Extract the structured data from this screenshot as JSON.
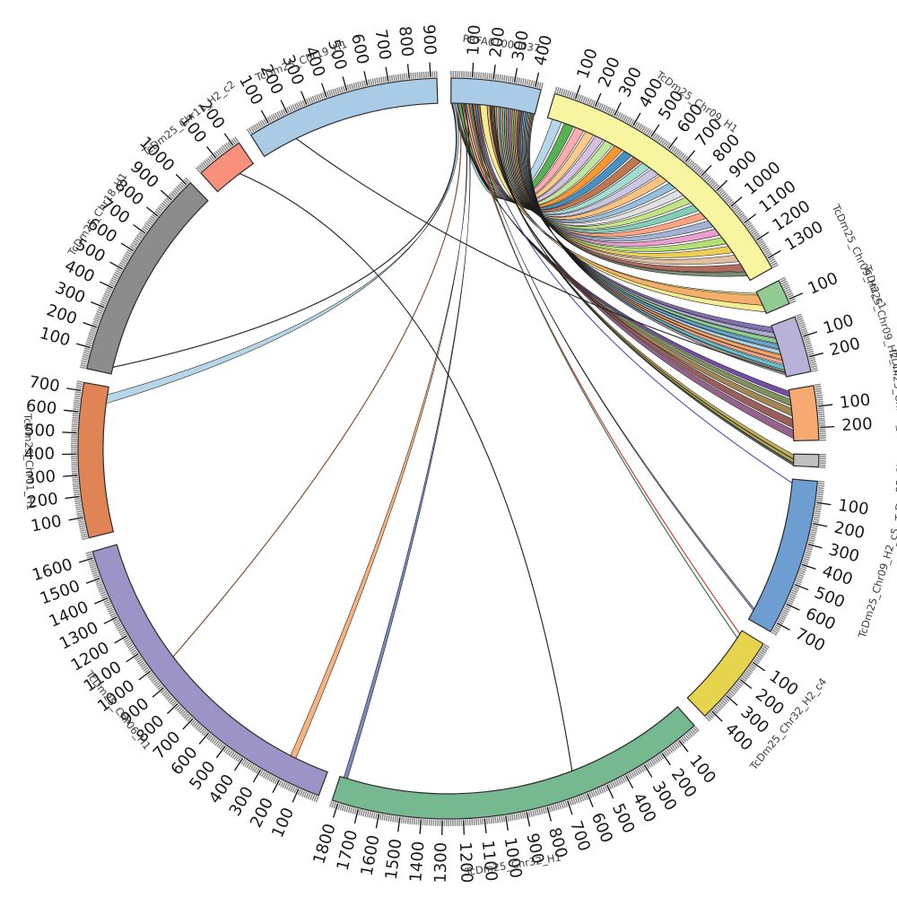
{
  "figure": {
    "kind": "circular synteny (circos-style) plot",
    "tick_unit_interval": 100,
    "minor_tick_interval": 10
  },
  "chart_data": {
    "type": "circos-synteny",
    "title": "",
    "segments": [
      {
        "id": "PRFA",
        "label": "PRFA01000037",
        "length": 430,
        "color": "#a9cbe5",
        "label_at": 215,
        "label_r": 455
      },
      {
        "id": "C09H1",
        "label": "TcDm25_Chr09_H1",
        "length": 1350,
        "color": "#f8f5a0",
        "label_at": 580,
        "label_r": 475
      },
      {
        "id": "C09c1",
        "label": "TcDm25_Chr09_H2_c1",
        "length": 120,
        "color": "#92cb92",
        "label_at": 60,
        "label_r": 505
      },
      {
        "id": "C09c2",
        "label": "TcDm25_Chr09_H2_c2",
        "length": 270,
        "color": "#bab1d8",
        "label_at": 135,
        "label_r": 505
      },
      {
        "id": "C09c3",
        "label": "TcDm25_Chr09_H2_c3",
        "length": 260,
        "color": "#f7a972",
        "label_at": 130,
        "label_r": 505
      },
      {
        "id": "C09c4",
        "label": "TcDm25_Chr09_H2_c4",
        "length": 60,
        "color": "#c0c0c0",
        "label_at": 30,
        "label_r": 505
      },
      {
        "id": "C09c5",
        "label": "TcDm25_Chr09_H2_c5",
        "length": 750,
        "color": "#6d9dd1",
        "label_at": 375,
        "label_r": 503
      },
      {
        "id": "C32c4",
        "label": "TcDm25_Chr32_H2_c4",
        "length": 440,
        "color": "#e6d44f",
        "label_at": 220,
        "label_r": 488
      },
      {
        "id": "C32H1",
        "label": "TcDm25_Chr32_H1",
        "length": 1830,
        "color": "#76b890",
        "label_at": 1000,
        "label_r": 470
      },
      {
        "id": "C06H1",
        "label": "TcDm25_Chr06_H1",
        "length": 1630,
        "color": "#9d93c6",
        "label_at": 950,
        "label_r": 470
      },
      {
        "id": "C01H1",
        "label": "TcDm25_Chr01_H1",
        "length": 740,
        "color": "#e08455",
        "label_at": 370,
        "label_r": 468
      },
      {
        "id": "C18H1",
        "label": "TcDm25_Chr18_H1",
        "length": 1020,
        "color": "#8c8c8c",
        "label_at": 650,
        "label_r": 470
      },
      {
        "id": "C11c2",
        "label": "TcDm25_Chr11_H2_c2",
        "length": 230,
        "color": "#f9907c",
        "label_at": 115,
        "label_r": 468
      },
      {
        "id": "C19H1",
        "label": "TcDm25_Chr19_H1",
        "length": 930,
        "color": "#a9cbe5",
        "label_at": 350,
        "label_r": 462
      }
    ],
    "links": [
      {
        "s": [
          18,
          34
        ],
        "target": "C09H1",
        "t": [
          25,
          75
        ],
        "color": "#a6cee3",
        "style": "ribbon"
      },
      {
        "s": [
          36,
          50
        ],
        "target": "C09H1",
        "t": [
          90,
          140
        ],
        "color": "#33a02c",
        "style": "ribbon"
      },
      {
        "s": [
          52,
          64
        ],
        "target": "C09H1",
        "t": [
          150,
          195
        ],
        "color": "#fb9a99",
        "style": "ribbon"
      },
      {
        "s": [
          66,
          78
        ],
        "target": "C09H1",
        "t": [
          205,
          250
        ],
        "color": "#fdbf6f",
        "style": "ribbon"
      },
      {
        "s": [
          80,
          92
        ],
        "target": "C09H1",
        "t": [
          260,
          305
        ],
        "color": "#cab2d6",
        "style": "ribbon"
      },
      {
        "s": [
          94,
          106
        ],
        "target": "C09H1",
        "t": [
          315,
          360
        ],
        "color": "#b2df8a",
        "style": "ribbon"
      },
      {
        "s": [
          108,
          120
        ],
        "target": "C09H1",
        "t": [
          370,
          415
        ],
        "color": "#ff7f00",
        "style": "ribbon"
      },
      {
        "s": [
          122,
          134
        ],
        "target": "C09H1",
        "t": [
          425,
          470
        ],
        "color": "#1f78b4",
        "style": "ribbon"
      },
      {
        "s": [
          136,
          146
        ],
        "target": "C09H1",
        "t": [
          480,
          525
        ],
        "color": "#b15928",
        "style": "ribbon"
      },
      {
        "s": [
          210,
          220
        ],
        "target": "C09H1",
        "t": [
          535,
          580
        ],
        "color": "#8dd3c7",
        "style": "ribbon"
      },
      {
        "s": [
          222,
          232
        ],
        "target": "C09H1",
        "t": [
          590,
          635
        ],
        "color": "#bebada",
        "style": "ribbon"
      },
      {
        "s": [
          234,
          244
        ],
        "target": "C09H1",
        "t": [
          645,
          690
        ],
        "color": "#fdb462",
        "style": "ribbon"
      },
      {
        "s": [
          246,
          254
        ],
        "target": "C09H1",
        "t": [
          705,
          745
        ],
        "color": "#80b1d3",
        "style": "ribbon"
      },
      {
        "s": [
          256,
          264
        ],
        "target": "C09H1",
        "t": [
          760,
          800
        ],
        "color": "#d9d9d9",
        "style": "ribbon"
      },
      {
        "s": [
          266,
          274
        ],
        "target": "C09H1",
        "t": [
          815,
          855
        ],
        "color": "#b3de69",
        "style": "ribbon"
      },
      {
        "s": [
          276,
          284
        ],
        "target": "C09H1",
        "t": [
          870,
          910
        ],
        "color": "#66c2a5",
        "style": "ribbon"
      },
      {
        "s": [
          286,
          294
        ],
        "target": "C09H1",
        "t": [
          925,
          965
        ],
        "color": "#fc8d62",
        "style": "ribbon"
      },
      {
        "s": [
          296,
          304
        ],
        "target": "C09H1",
        "t": [
          980,
          1020
        ],
        "color": "#8da0cb",
        "style": "ribbon"
      },
      {
        "s": [
          306,
          314
        ],
        "target": "C09H1",
        "t": [
          1035,
          1075
        ],
        "color": "#e78ac3",
        "style": "ribbon"
      },
      {
        "s": [
          316,
          324
        ],
        "target": "C09H1",
        "t": [
          1090,
          1130
        ],
        "color": "#a6d854",
        "style": "ribbon"
      },
      {
        "s": [
          326,
          334
        ],
        "target": "C09H1",
        "t": [
          1145,
          1185
        ],
        "color": "#e6c330",
        "style": "ribbon"
      },
      {
        "s": [
          336,
          344
        ],
        "target": "C09H1",
        "t": [
          1200,
          1240
        ],
        "color": "#d8b08c",
        "style": "ribbon"
      },
      {
        "s": [
          346,
          354
        ],
        "target": "C09H1",
        "t": [
          1255,
          1295
        ],
        "color": "#9e4a3a",
        "style": "ribbon"
      },
      {
        "s": [
          356,
          362
        ],
        "target": "C09H1",
        "t": [
          1300,
          1325
        ],
        "color": "#5b7553",
        "style": "ribbon"
      },
      {
        "s": [
          148,
          183
        ],
        "target": "C09c1",
        "t": [
          8,
          112
        ],
        "color": "#efe97a",
        "style": "ribbon"
      },
      {
        "s": [
          184,
          204
        ],
        "target": "C09c1",
        "t": [
          18,
          75
        ],
        "color": "#f4a261",
        "style": "ribbon"
      },
      {
        "s": [
          364,
          372
        ],
        "target": "C09c2",
        "t": [
          8,
          35
        ],
        "color": "#6a51a3",
        "style": "ribbon"
      },
      {
        "s": [
          373,
          380
        ],
        "target": "C09c2",
        "t": [
          40,
          65
        ],
        "color": "#9e9ac8",
        "style": "ribbon"
      },
      {
        "s": [
          381,
          388
        ],
        "target": "C09c2",
        "t": [
          70,
          95
        ],
        "color": "#74c476",
        "style": "ribbon"
      },
      {
        "s": [
          389,
          396
        ],
        "target": "C09c2",
        "t": [
          100,
          125
        ],
        "color": "#4292c6",
        "style": "ribbon"
      },
      {
        "s": [
          397,
          403
        ],
        "target": "C09c2",
        "t": [
          130,
          152
        ],
        "color": "#9ecae1",
        "style": "ribbon"
      },
      {
        "s": [
          404,
          410
        ],
        "target": "C09c2",
        "t": [
          157,
          180
        ],
        "color": "#fd8d3c",
        "style": "ribbon"
      },
      {
        "s": [
          411,
          416
        ],
        "target": "C09c2",
        "t": [
          185,
          205
        ],
        "color": "#fc9272",
        "style": "ribbon"
      },
      {
        "s": [
          417,
          422
        ],
        "target": "C09c2",
        "t": [
          212,
          235
        ],
        "color": "#41b6c4",
        "style": "ribbon"
      },
      {
        "s": [
          423,
          428
        ],
        "target": "C09c2",
        "t": [
          240,
          262
        ],
        "color": "#8c8c8c",
        "style": "ribbon"
      },
      {
        "s": [
          2,
          8
        ],
        "target": "C09c3",
        "t": [
          8,
          38
        ],
        "color": "#54278f",
        "style": "ribbon"
      },
      {
        "s": [
          8,
          14
        ],
        "target": "C09c3",
        "t": [
          48,
          84
        ],
        "color": "#637939",
        "style": "ribbon"
      },
      {
        "s": [
          14,
          20
        ],
        "target": "C09c3",
        "t": [
          95,
          135
        ],
        "color": "#8c6d31",
        "style": "ribbon"
      },
      {
        "s": [
          196,
          202
        ],
        "target": "C09c3",
        "t": [
          150,
          195
        ],
        "color": "#843c39",
        "style": "ribbon"
      },
      {
        "s": [
          202,
          208
        ],
        "target": "C09c3",
        "t": [
          205,
          250
        ],
        "color": "#7b4173",
        "style": "ribbon"
      },
      {
        "s": [
          208,
          214
        ],
        "target": "C09c4",
        "t": [
          5,
          25
        ],
        "color": "#bd9e39",
        "style": "ribbon"
      },
      {
        "s": [
          214,
          219
        ],
        "target": "C09c4",
        "t": [
          28,
          45
        ],
        "color": "#9c9c2e",
        "style": "ribbon"
      },
      {
        "s": [
          219,
          224
        ],
        "target": "C09c4",
        "t": [
          48,
          58
        ],
        "color": "#4a4a4a",
        "style": "ribbon"
      },
      {
        "s": [
          110,
          112
        ],
        "target": "C09c5",
        "t": [
          690,
          700
        ],
        "color": "#8d7cb6",
        "style": "ribbon"
      },
      {
        "s": [
          124,
          126
        ],
        "target": "C09c5",
        "t": [
          20,
          30
        ],
        "color": "#5e4fa2",
        "style": "line"
      },
      {
        "s": [
          8,
          20
        ],
        "target": "C01H1",
        "t": [
          655,
          700
        ],
        "color": "#a6cee3",
        "style": "ribbon"
      },
      {
        "s": [
          5,
          5
        ],
        "target": "C18H1",
        "t": [
          35,
          35
        ],
        "color": "#222222",
        "style": "line"
      },
      {
        "s": [
          30,
          30
        ],
        "target": "C06H1",
        "t": [
          990,
          990
        ],
        "color": "#7a4a2a",
        "style": "line"
      },
      {
        "s": [
          55,
          60
        ],
        "target": "C06H1",
        "t": [
          175,
          205
        ],
        "color": "#f4a261",
        "style": "ribbon"
      },
      {
        "s": [
          70,
          73
        ],
        "target": "C32H1",
        "t": [
          1790,
          1810
        ],
        "color": "#5b6fae",
        "style": "ribbon"
      },
      {
        "s": [
          90,
          90
        ],
        "target": "C32c4",
        "t": [
          20,
          20
        ],
        "color": "#c0392b",
        "style": "line"
      },
      {
        "s": [
          100,
          100
        ],
        "target": "C32c4",
        "t": [
          44,
          44
        ],
        "color": "#2d6a4f",
        "style": "line"
      },
      {
        "source": "C11c2",
        "s": [
          145,
          145
        ],
        "target": "C32H1",
        "t": [
          630,
          630
        ],
        "color": "#222222",
        "style": "line"
      },
      {
        "source": "C19H1",
        "s": [
          185,
          185
        ],
        "target": "C09c2",
        "t": [
          250,
          250
        ],
        "color": "#222222",
        "style": "line"
      }
    ]
  }
}
